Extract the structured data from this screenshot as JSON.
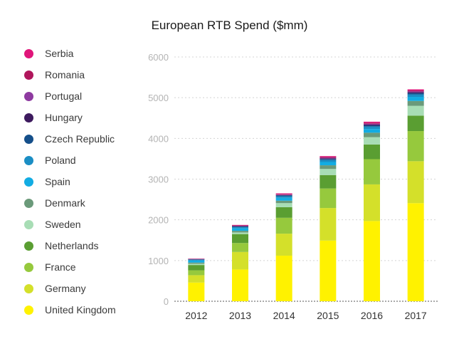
{
  "chart_data": {
    "type": "bar",
    "stacked": true,
    "title": "European RTB Spend ($mm)",
    "xlabel": "",
    "ylabel": "",
    "ylim": [
      0,
      6000
    ],
    "yticks": [
      0,
      1000,
      2000,
      3000,
      4000,
      5000,
      6000
    ],
    "grid": true,
    "legend_position": "left",
    "categories": [
      "2012",
      "2013",
      "2014",
      "2015",
      "2016",
      "2017"
    ],
    "series": [
      {
        "name": "United Kingdom",
        "color": "#FFF200",
        "values": [
          460,
          780,
          1120,
          1490,
          1970,
          2410
        ]
      },
      {
        "name": "Germany",
        "color": "#D4E02A",
        "values": [
          180,
          430,
          540,
          800,
          900,
          1030
        ]
      },
      {
        "name": "France",
        "color": "#96C93D",
        "values": [
          120,
          220,
          390,
          480,
          620,
          740
        ]
      },
      {
        "name": "Netherlands",
        "color": "#5A9E32",
        "values": [
          130,
          220,
          260,
          330,
          360,
          380
        ]
      },
      {
        "name": "Sweden",
        "color": "#A8DDB5",
        "values": [
          30,
          40,
          100,
          150,
          180,
          240
        ]
      },
      {
        "name": "Denmark",
        "color": "#6B9A7A",
        "values": [
          30,
          40,
          60,
          90,
          110,
          120
        ]
      },
      {
        "name": "Spain",
        "color": "#12ACE3",
        "values": [
          50,
          60,
          70,
          80,
          90,
          100
        ]
      },
      {
        "name": "Poland",
        "color": "#1B8EC4",
        "values": [
          20,
          30,
          40,
          50,
          60,
          60
        ]
      },
      {
        "name": "Czech Republic",
        "color": "#154F8A",
        "values": [
          10,
          15,
          20,
          25,
          30,
          35
        ]
      },
      {
        "name": "Hungary",
        "color": "#3D1A5E",
        "values": [
          5,
          10,
          10,
          15,
          20,
          20
        ]
      },
      {
        "name": "Portugal",
        "color": "#8E3AA0",
        "values": [
          5,
          10,
          10,
          15,
          20,
          20
        ]
      },
      {
        "name": "Romania",
        "color": "#B0165C",
        "values": [
          5,
          10,
          15,
          20,
          25,
          25
        ]
      },
      {
        "name": "Serbia",
        "color": "#E0157A",
        "values": [
          5,
          10,
          15,
          20,
          25,
          25
        ]
      }
    ]
  },
  "legend": {
    "items": [
      {
        "label": "Serbia",
        "color": "#E0157A"
      },
      {
        "label": "Romania",
        "color": "#B0165C"
      },
      {
        "label": "Portugal",
        "color": "#8E3AA0"
      },
      {
        "label": "Hungary",
        "color": "#3D1A5E"
      },
      {
        "label": "Czech Republic",
        "color": "#154F8A"
      },
      {
        "label": "Poland",
        "color": "#1B8EC4"
      },
      {
        "label": "Spain",
        "color": "#12ACE3"
      },
      {
        "label": "Denmark",
        "color": "#6B9A7A"
      },
      {
        "label": "Sweden",
        "color": "#A8DDB5"
      },
      {
        "label": "Netherlands",
        "color": "#5A9E32"
      },
      {
        "label": "France",
        "color": "#96C93D"
      },
      {
        "label": "Germany",
        "color": "#D4E02A"
      },
      {
        "label": "United Kingdom",
        "color": "#FFF200"
      }
    ]
  }
}
